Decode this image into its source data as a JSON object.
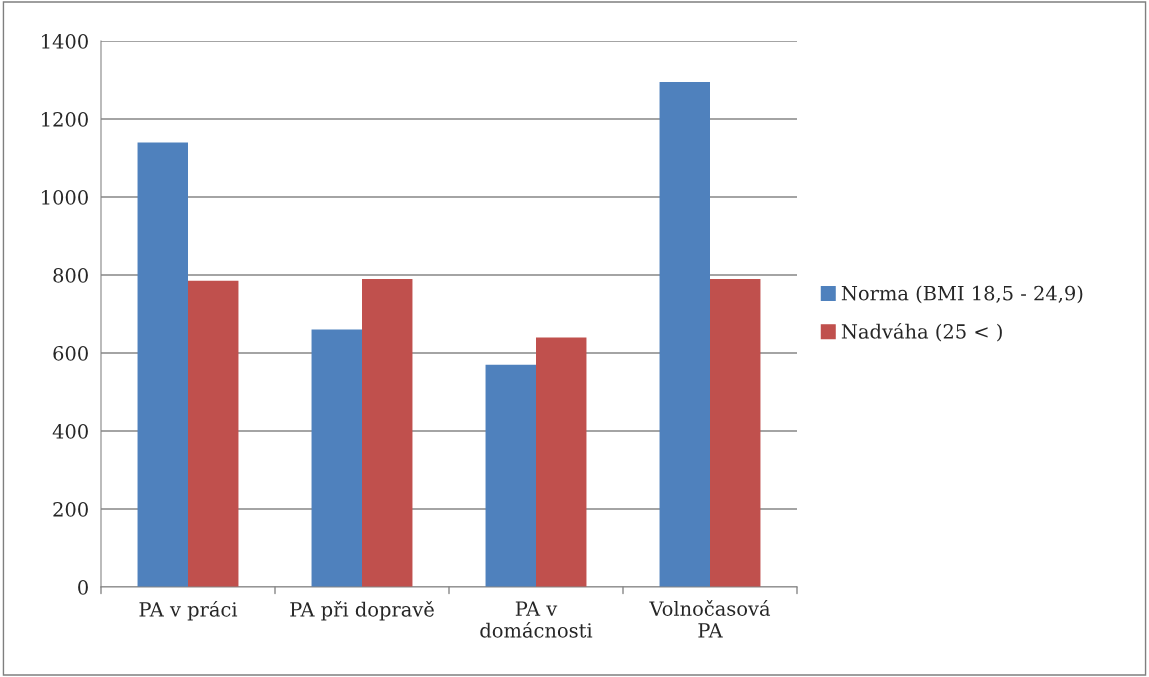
{
  "chart_data": {
    "type": "bar",
    "categories": [
      "PA v práci",
      "PA při dopravě",
      "PA v\ndomácnosti",
      "Volnočasová\nPA"
    ],
    "series": [
      {
        "name": "Norma (BMI 18,5 - 24,9)",
        "color": "#4f81bd",
        "values": [
          1140,
          660,
          570,
          1295
        ]
      },
      {
        "name": "Nadváha (25 < )",
        "color": "#c0504d",
        "values": [
          785,
          790,
          640,
          790
        ]
      }
    ],
    "ylim": [
      0,
      1400
    ],
    "yticks": [
      0,
      200,
      400,
      600,
      800,
      1000,
      1200,
      1400
    ],
    "grid": "y",
    "legend": "right"
  }
}
